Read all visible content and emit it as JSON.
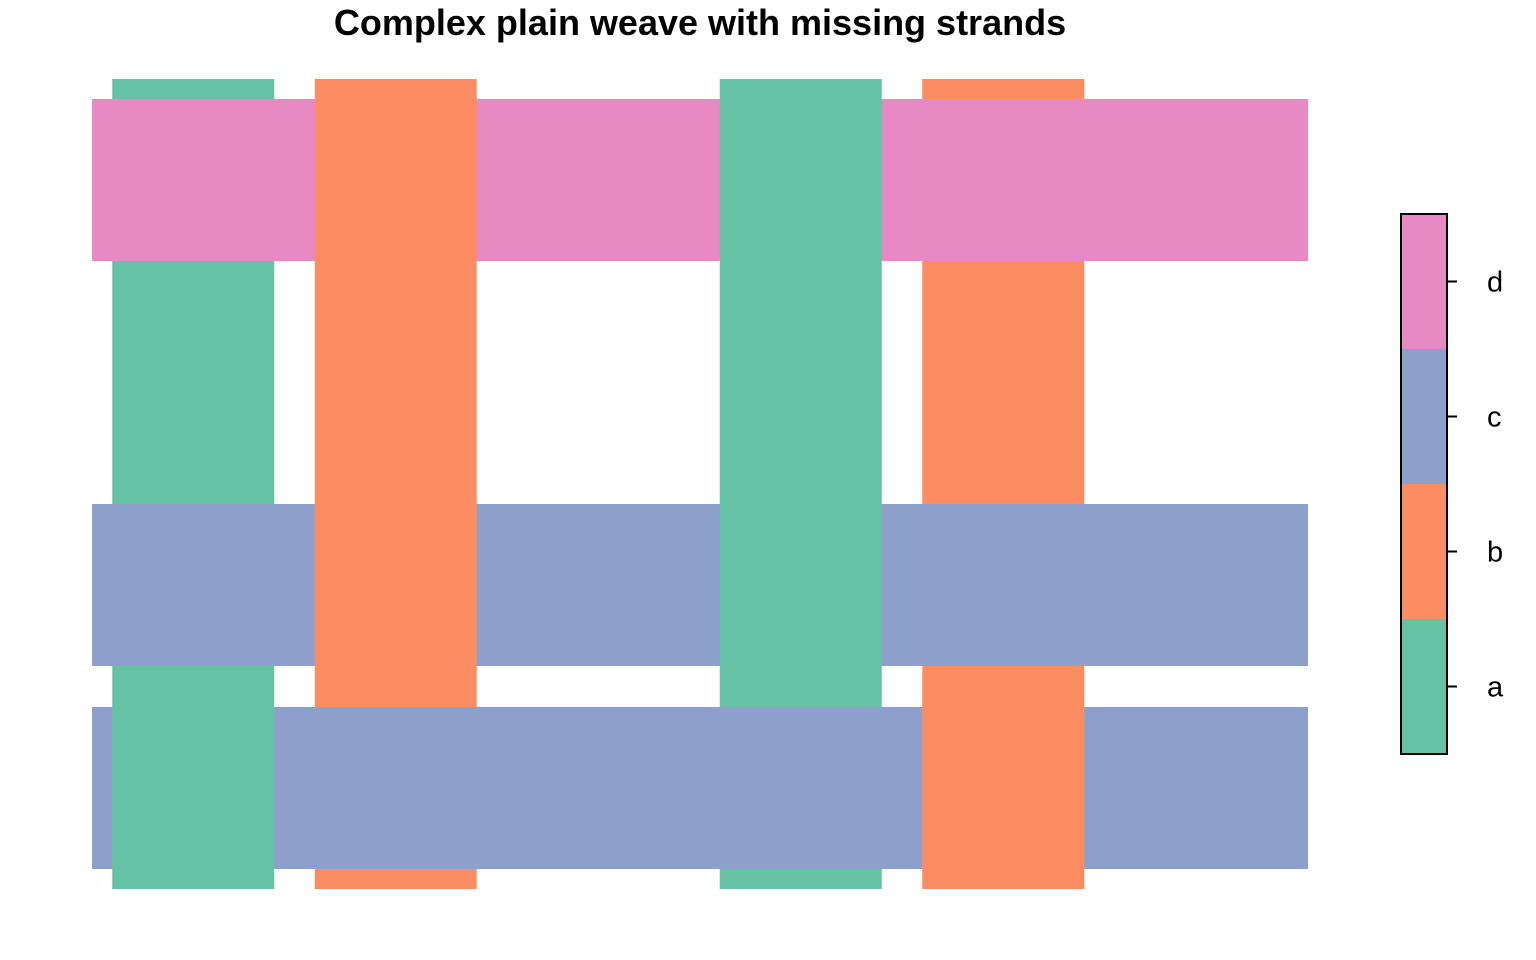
{
  "chart_data": {
    "type": "heatmap",
    "title": "Complex plain weave with missing strands",
    "xlabel": "",
    "ylabel": "",
    "warp": [
      {
        "x": 1,
        "category": "a"
      },
      {
        "x": 2,
        "category": "b"
      },
      {
        "x": 3,
        "category": null
      },
      {
        "x": 4,
        "category": "a"
      },
      {
        "x": 5,
        "category": "b"
      },
      {
        "x": 6,
        "category": null
      }
    ],
    "weft": [
      {
        "y": 1,
        "category": "c"
      },
      {
        "y": 2,
        "category": "c"
      },
      {
        "y": 3,
        "category": null
      },
      {
        "y": 4,
        "category": "d"
      }
    ],
    "weft_over_warp": [
      [
        false,
        true,
        null,
        true,
        false,
        null
      ],
      [
        true,
        false,
        null,
        false,
        true,
        null
      ],
      [
        null,
        null,
        null,
        null,
        null,
        null
      ],
      [
        true,
        false,
        null,
        false,
        true,
        null
      ]
    ],
    "legend": {
      "position": "right",
      "levels": [
        "a",
        "b",
        "c",
        "d"
      ],
      "colors": {
        "a": "#66C2A5",
        "b": "#FC8D62",
        "c": "#8DA0CB",
        "d": "#E78AC3"
      }
    }
  }
}
